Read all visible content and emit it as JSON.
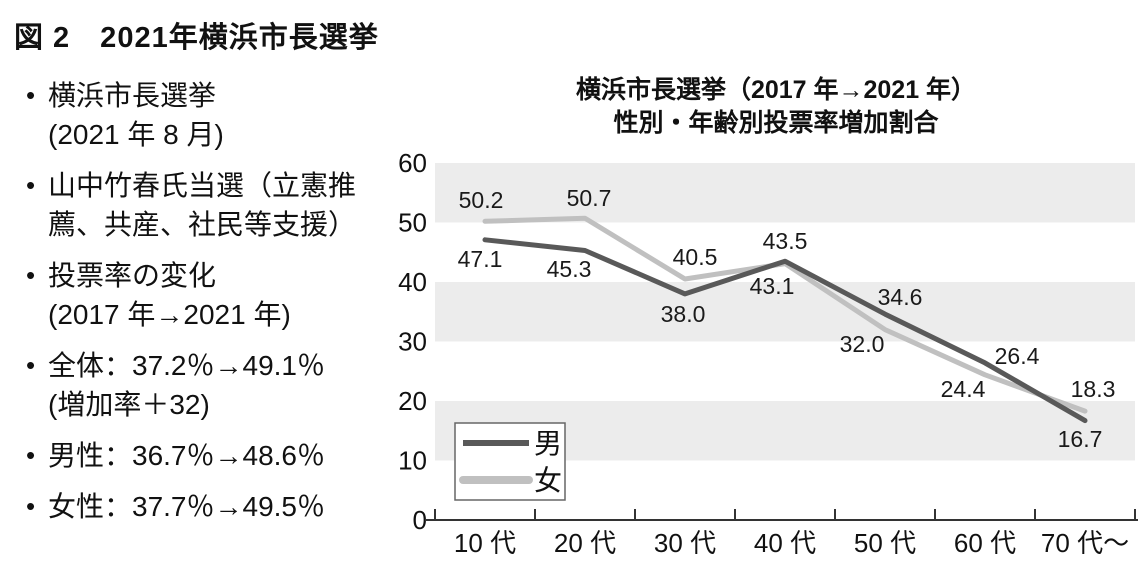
{
  "figure_title": "図 2　2021年横浜市長選挙",
  "notes": [
    {
      "lines": [
        "横浜市長選挙",
        "(2021 年 8 月)"
      ]
    },
    {
      "lines": [
        "山中竹春氏当選（立憲推",
        "薦、共産、社民等支援）"
      ]
    },
    {
      "lines": [
        "投票率の変化",
        "(2017 年→2021 年)"
      ]
    },
    {
      "lines": [
        "全体：37.2％→49.1％",
        "(増加率＋32)"
      ]
    },
    {
      "lines": [
        "男性：36.7％→48.6％"
      ]
    },
    {
      "lines": [
        "女性：37.7％→49.5％"
      ]
    }
  ],
  "chart_data": {
    "type": "line",
    "title_line1": "横浜市長選挙（2017 年→2021 年）",
    "title_line2": "性別・年齢別投票率増加割合",
    "categories": [
      "10 代",
      "20 代",
      "30 代",
      "40 代",
      "50 代",
      "60 代",
      "70 代～"
    ],
    "series": [
      {
        "name": "男",
        "color": "#595959",
        "values": [
          47.1,
          45.3,
          38.0,
          43.5,
          34.6,
          26.4,
          16.7
        ]
      },
      {
        "name": "女",
        "color": "#c0c0c0",
        "values": [
          50.2,
          50.7,
          40.5,
          43.1,
          32.0,
          24.4,
          18.3
        ]
      }
    ],
    "xlabel": "",
    "ylabel": "",
    "ylim": [
      0,
      60
    ],
    "yticks": [
      0,
      10,
      20,
      30,
      40,
      50,
      60
    ],
    "bands": [
      [
        10,
        20
      ],
      [
        30,
        40
      ],
      [
        50,
        60
      ]
    ],
    "band_color": "#ececec",
    "axis_color": "#333333",
    "grid": false,
    "legend_position": "bottom-left"
  }
}
